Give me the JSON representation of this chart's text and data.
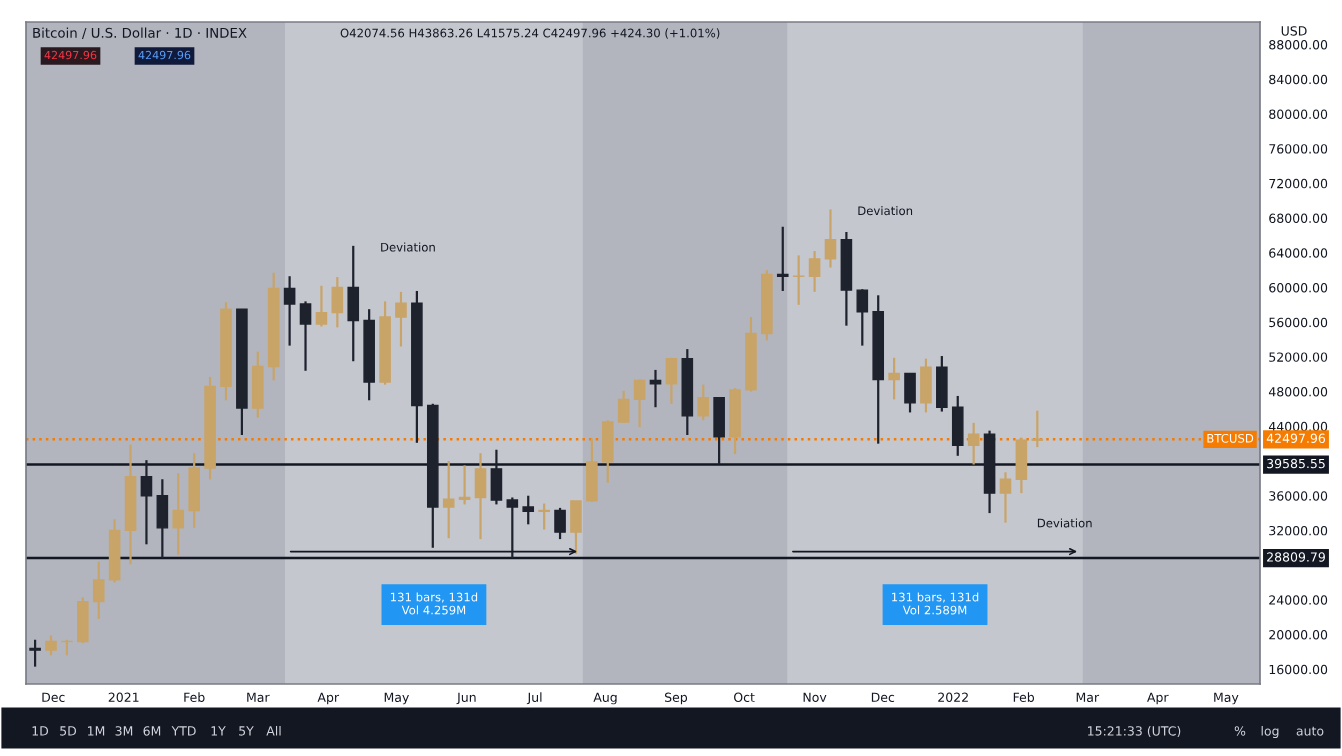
{
  "chart_data": {
    "type": "candlestick",
    "title": "Bitcoin / U.S. Dollar · 1D · INDEX",
    "subtitle": "O42074.56 H43863.26 L41575.24 C42497.96 +424.30 (+1.01%)",
    "x": [
      "2020-11-23",
      "2020-11-30",
      "2020-12-07",
      "2020-12-14",
      "2020-12-21",
      "2020-12-28",
      "2021-01-04",
      "2021-01-11",
      "2021-01-18",
      "2021-01-25",
      "2021-02-01",
      "2021-02-08",
      "2021-02-15",
      "2021-02-22",
      "2021-03-01",
      "2021-03-08",
      "2021-03-15",
      "2021-03-22",
      "2021-03-29",
      "2021-04-05",
      "2021-04-12",
      "2021-04-19",
      "2021-04-26",
      "2021-05-03",
      "2021-05-10",
      "2021-05-17",
      "2021-05-24",
      "2021-05-31",
      "2021-06-07",
      "2021-06-14",
      "2021-06-21",
      "2021-06-28",
      "2021-07-05",
      "2021-07-12",
      "2021-07-19",
      "2021-07-26",
      "2021-08-02",
      "2021-08-09",
      "2021-08-16",
      "2021-08-23",
      "2021-08-30",
      "2021-09-06",
      "2021-09-13",
      "2021-09-20",
      "2021-09-27",
      "2021-10-04",
      "2021-10-11",
      "2021-10-18",
      "2021-10-25",
      "2021-11-01",
      "2021-11-08",
      "2021-11-15",
      "2021-11-22",
      "2021-11-29",
      "2021-12-06",
      "2021-12-13",
      "2021-12-20",
      "2021-12-27",
      "2022-01-03",
      "2022-01-10",
      "2022-01-17",
      "2022-01-24",
      "2022-01-31",
      "2022-02-07"
    ],
    "ohlc": [
      [
        18400,
        19400,
        16300,
        18200
      ],
      [
        18200,
        19900,
        17600,
        19200
      ],
      [
        19200,
        19400,
        17600,
        19200
      ],
      [
        19200,
        24300,
        19000,
        23800
      ],
      [
        23800,
        28400,
        21800,
        26300
      ],
      [
        26300,
        33300,
        26000,
        32000
      ],
      [
        32000,
        41900,
        28100,
        38200
      ],
      [
        38200,
        40100,
        30400,
        36000
      ],
      [
        36000,
        37900,
        28800,
        32300
      ],
      [
        32300,
        38600,
        29200,
        34300
      ],
      [
        34300,
        40900,
        32300,
        39200
      ],
      [
        39200,
        49700,
        37900,
        48600
      ],
      [
        48600,
        58300,
        47000,
        57500
      ],
      [
        57500,
        57500,
        43000,
        46100
      ],
      [
        46100,
        52600,
        45000,
        50900
      ],
      [
        50900,
        61700,
        49300,
        59900
      ],
      [
        59900,
        61300,
        53300,
        58100
      ],
      [
        58100,
        58400,
        50400,
        55800
      ],
      [
        55800,
        60200,
        55500,
        57100
      ],
      [
        57100,
        61200,
        55400,
        60000
      ],
      [
        60000,
        64800,
        51500,
        56200
      ],
      [
        56200,
        57500,
        47000,
        49100
      ],
      [
        49100,
        58400,
        48800,
        56600
      ],
      [
        56600,
        59500,
        53200,
        58200
      ],
      [
        58200,
        59600,
        42100,
        46400
      ],
      [
        46400,
        46600,
        30000,
        34700
      ],
      [
        34700,
        40000,
        31100,
        35600
      ],
      [
        35600,
        39500,
        35000,
        35800
      ],
      [
        35800,
        40900,
        31000,
        39100
      ],
      [
        39100,
        41300,
        35000,
        35500
      ],
      [
        35500,
        35800,
        28800,
        34700
      ],
      [
        34700,
        36000,
        32700,
        34200
      ],
      [
        34200,
        35100,
        32100,
        34300
      ],
      [
        34300,
        34600,
        31000,
        31800
      ],
      [
        31800,
        35400,
        29300,
        35400
      ],
      [
        35400,
        42600,
        35300,
        39900
      ],
      [
        39900,
        44700,
        37500,
        44500
      ],
      [
        44500,
        48100,
        44400,
        47100
      ],
      [
        47100,
        49400,
        43900,
        49300
      ],
      [
        49300,
        50500,
        46200,
        48900
      ],
      [
        48900,
        51900,
        46600,
        51800
      ],
      [
        51800,
        52900,
        43000,
        45200
      ],
      [
        45200,
        48800,
        44700,
        47300
      ],
      [
        47300,
        47300,
        39600,
        42800
      ],
      [
        42800,
        48400,
        40800,
        48200
      ],
      [
        48200,
        56600,
        48000,
        54700
      ],
      [
        54700,
        62000,
        53900,
        61500
      ],
      [
        61500,
        67000,
        59600,
        61300
      ],
      [
        61300,
        63700,
        58000,
        61300
      ],
      [
        61300,
        64200,
        59500,
        63300
      ],
      [
        63300,
        69000,
        62300,
        65500
      ],
      [
        65500,
        66400,
        55600,
        59700
      ],
      [
        59700,
        59800,
        53300,
        57200
      ],
      [
        57200,
        59100,
        42000,
        49400
      ],
      [
        49400,
        51900,
        47100,
        50100
      ],
      [
        50100,
        50100,
        45600,
        46700
      ],
      [
        46700,
        51800,
        45600,
        50800
      ],
      [
        50800,
        52100,
        45700,
        46200
      ],
      [
        46200,
        47500,
        40600,
        41800
      ],
      [
        41800,
        44400,
        39600,
        43100
      ],
      [
        43100,
        43500,
        34000,
        36300
      ],
      [
        36300,
        38700,
        32900,
        37900
      ],
      [
        37900,
        42700,
        36300,
        42400
      ],
      [
        42400,
        45800,
        41600,
        42500
      ]
    ],
    "xlim": [
      "2020-11-19",
      "2022-05-16"
    ],
    "xticks": [
      {
        "value": "2020-12-01",
        "label": "Dec"
      },
      {
        "value": "2021-01-01",
        "label": "2021"
      },
      {
        "value": "2021-02-01",
        "label": "Feb"
      },
      {
        "value": "2021-03-01",
        "label": "Mar"
      },
      {
        "value": "2021-04-01",
        "label": "Apr"
      },
      {
        "value": "2021-05-01",
        "label": "May"
      },
      {
        "value": "2021-06-01",
        "label": "Jun"
      },
      {
        "value": "2021-07-01",
        "label": "Jul"
      },
      {
        "value": "2021-08-01",
        "label": "Aug"
      },
      {
        "value": "2021-09-01",
        "label": "Sep"
      },
      {
        "value": "2021-10-01",
        "label": "Oct"
      },
      {
        "value": "2021-11-01",
        "label": "Nov"
      },
      {
        "value": "2021-12-01",
        "label": "Dec"
      },
      {
        "value": "2022-01-01",
        "label": "2022"
      },
      {
        "value": "2022-02-01",
        "label": "Feb"
      },
      {
        "value": "2022-03-01",
        "label": "Mar"
      },
      {
        "value": "2022-04-01",
        "label": "Apr"
      },
      {
        "value": "2022-05-01",
        "label": "May"
      }
    ],
    "ylim": [
      14300,
      90600
    ],
    "yticks": [
      {
        "value": 16000,
        "label": "16000.00"
      },
      {
        "value": 20000,
        "label": "20000.00"
      },
      {
        "value": 24000,
        "label": "24000.00"
      },
      {
        "value": 32000,
        "label": "32000.00"
      },
      {
        "value": 36000,
        "label": "36000.00"
      },
      {
        "value": 44000,
        "label": "44000.00"
      },
      {
        "value": 48000,
        "label": "48000.00"
      },
      {
        "value": 52000,
        "label": "52000.00"
      },
      {
        "value": 56000,
        "label": "56000.00"
      },
      {
        "value": 60000,
        "label": "60000.00"
      },
      {
        "value": 64000,
        "label": "64000.00"
      },
      {
        "value": 68000,
        "label": "68000.00"
      },
      {
        "value": 72000,
        "label": "72000.00"
      },
      {
        "value": 76000,
        "label": "76000.00"
      },
      {
        "value": 80000,
        "label": "80000.00"
      },
      {
        "value": 84000,
        "label": "84000.00"
      },
      {
        "value": 88000,
        "label": "88000.00"
      }
    ],
    "ref_lines": [
      {
        "axis": "y",
        "value": 28809.79,
        "label": "28809.79",
        "color": "#131722",
        "line_style": "solid"
      },
      {
        "axis": "y",
        "value": 39585.55,
        "label": "39585.55",
        "color": "#131722",
        "line_style": "solid"
      },
      {
        "axis": "y",
        "value": 42497.96,
        "label": "42497.96",
        "color": "#f57c00",
        "line_style": "dotted"
      }
    ],
    "bands": [
      {
        "axis": "x",
        "from": "2021-03-13",
        "to": "2021-07-22",
        "color": "#c9ccd3"
      },
      {
        "axis": "x",
        "from": "2021-10-20",
        "to": "2022-02-27",
        "color": "#c9ccd3"
      }
    ],
    "annotations": [
      {
        "text": "Deviation",
        "x": "2021-04-14",
        "y": 64800
      },
      {
        "text": "Deviation",
        "x": "2021-11-10",
        "y": 69000
      },
      {
        "text": "Deviation",
        "x": "2022-01-28",
        "y": 33000
      },
      "131 bars, 131d\nVol 4.259M",
      "131 bars, 131d\nVol 2.589M",
      "42497.96",
      "42497.96",
      "BTCUSD",
      "1D",
      "5D",
      "1M",
      "3M",
      "6M",
      "YTD",
      "1Y",
      "5Y",
      "All",
      "15:21:33 (UTC)",
      "%",
      "log",
      "auto",
      "USD"
    ],
    "grid": false,
    "legend": false
  }
}
